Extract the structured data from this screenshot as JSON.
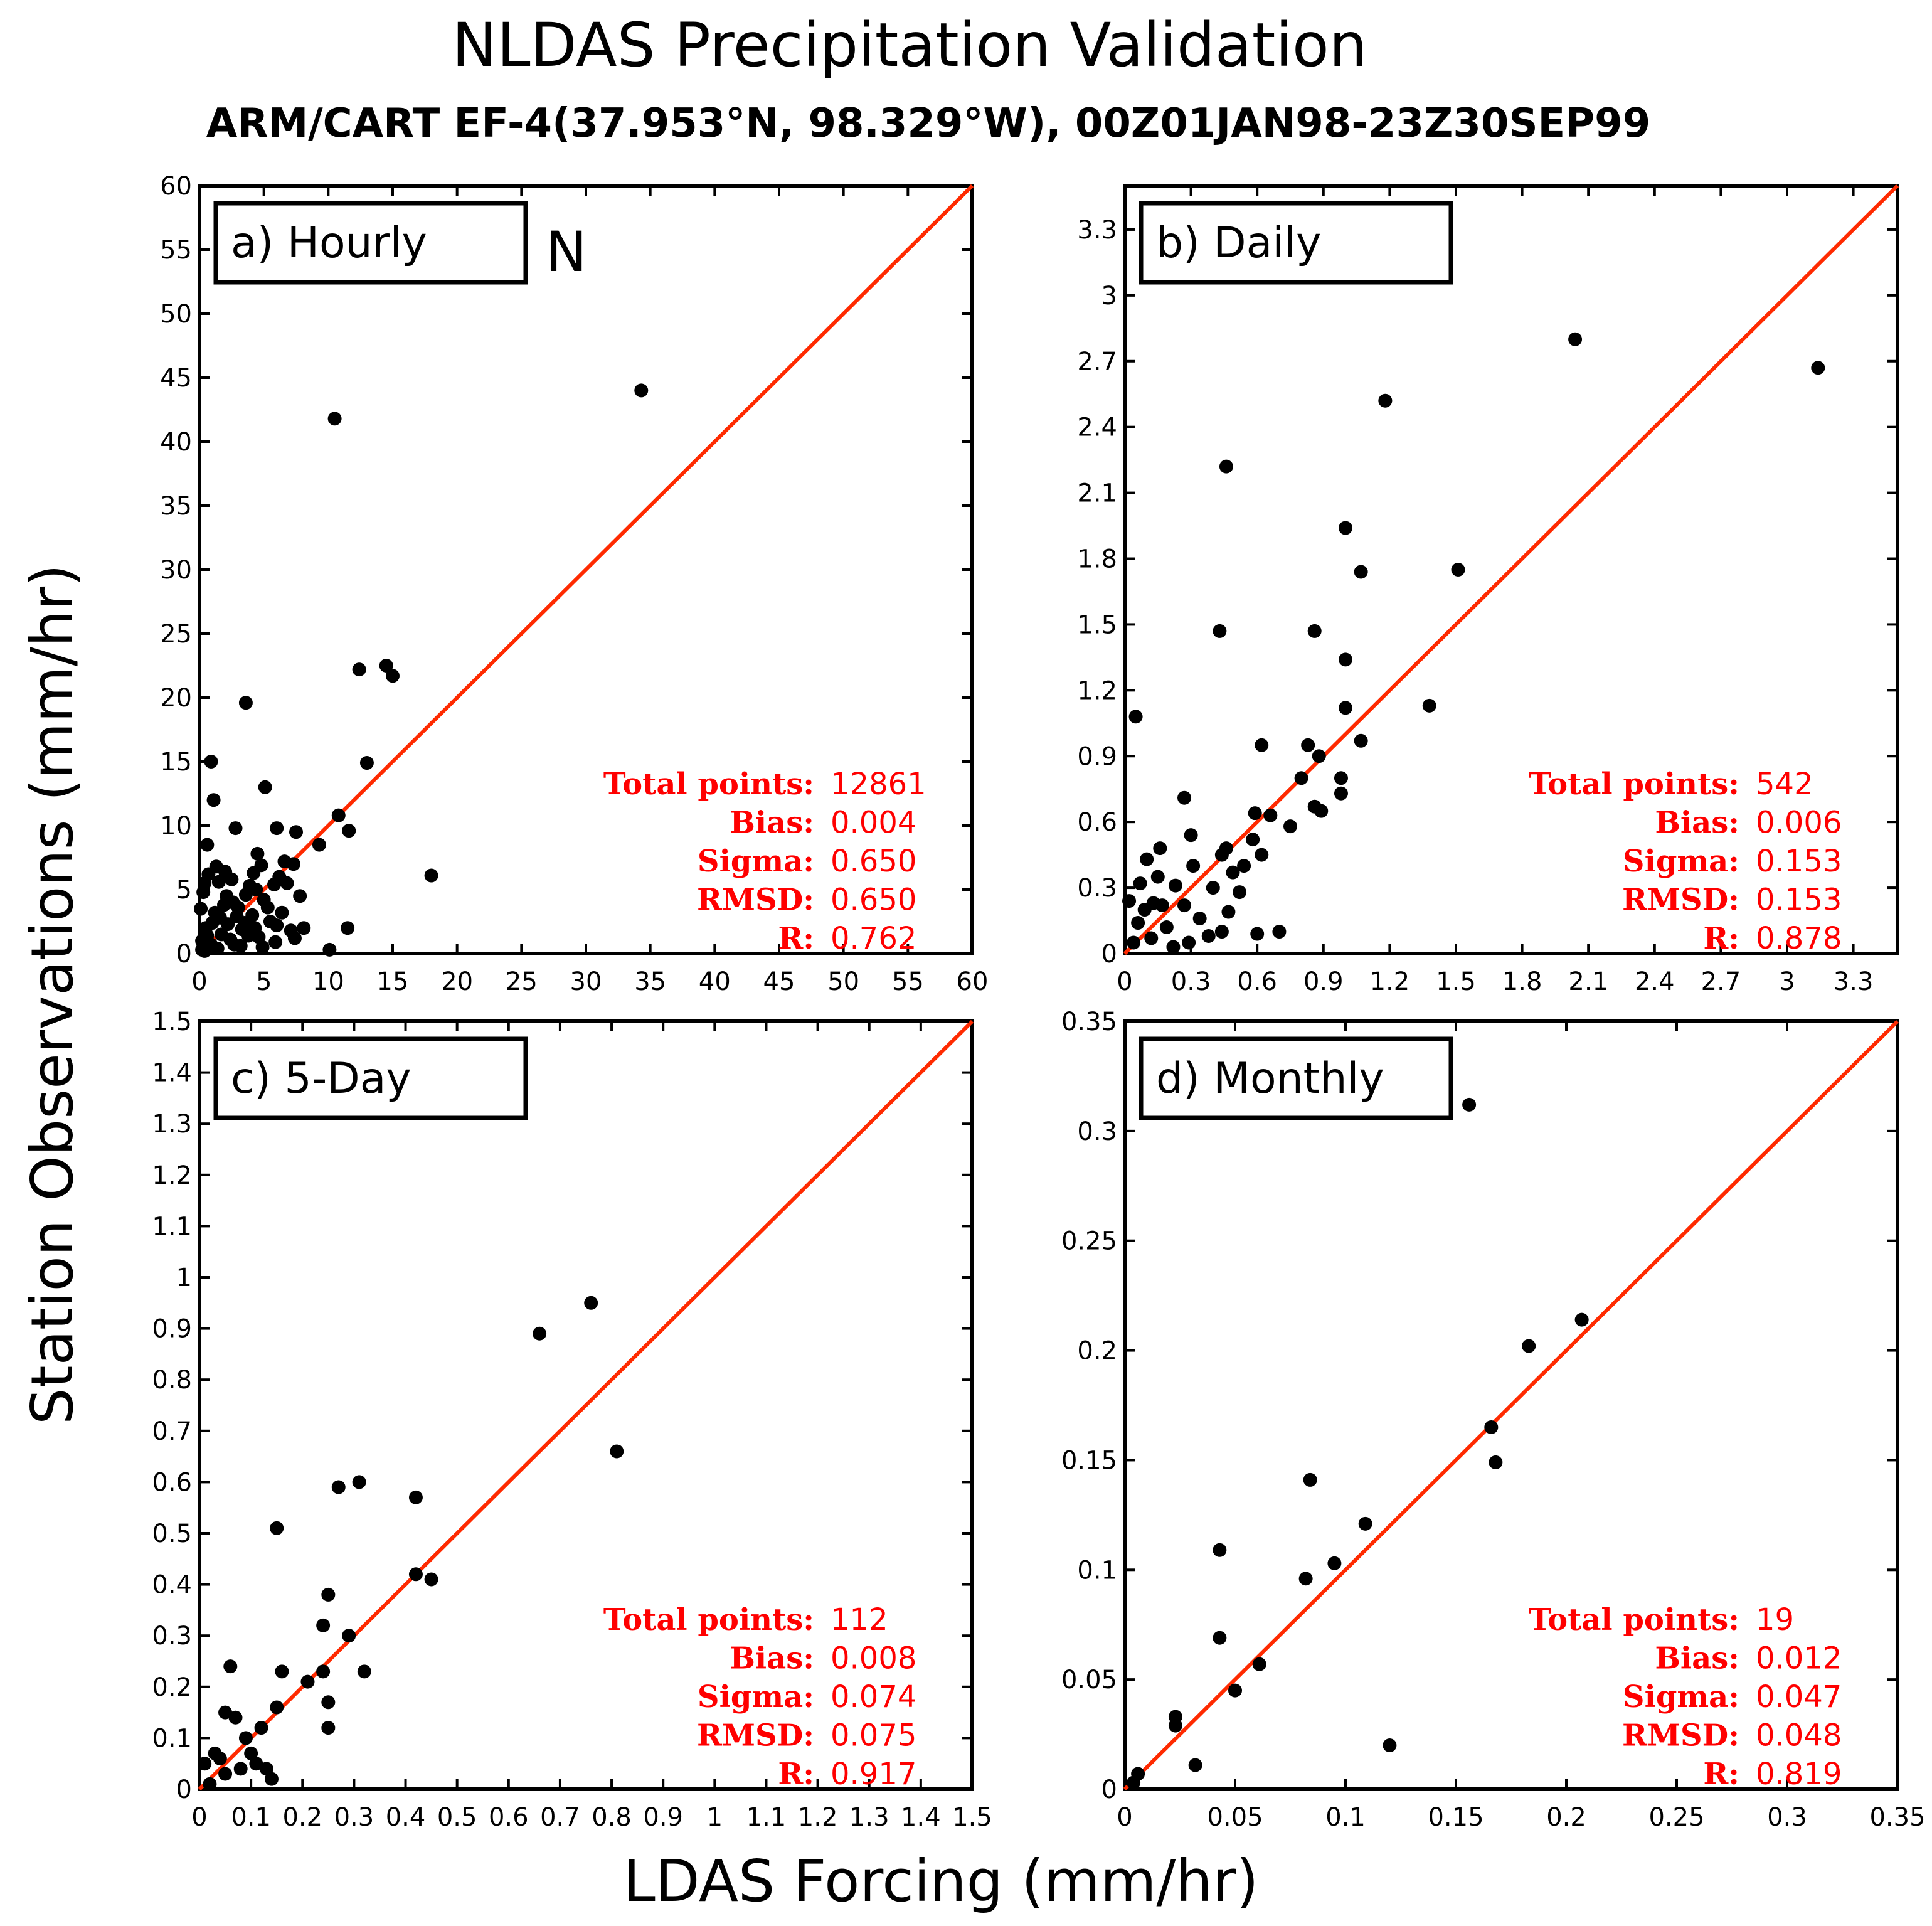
{
  "figure": {
    "title": "NLDAS Precipitation Validation",
    "subtitle": "ARM/CART EF-4(37.953°N, 98.329°W), 00Z01JAN98-23Z30SEP99",
    "xlabel": "LDAS Forcing (mm/hr)",
    "ylabel": "Station Observations (mm/hr)",
    "annotation": "N"
  },
  "colors": {
    "one_to_one_line": "#ff2a00",
    "stats_text": "#ff0000",
    "points": "#000000"
  },
  "chart_data": [
    {
      "type": "scatter",
      "title": "a) Hourly",
      "xlim": [
        0,
        60
      ],
      "ylim": [
        0,
        60
      ],
      "xticks": [
        0,
        5,
        10,
        15,
        20,
        25,
        30,
        35,
        40,
        45,
        50,
        55,
        60
      ],
      "yticks": [
        0,
        5,
        10,
        15,
        20,
        25,
        30,
        35,
        40,
        45,
        50,
        55,
        60
      ],
      "reference_line": "1:1",
      "stats": [
        {
          "label": "Total points:",
          "value": "12861"
        },
        {
          "label": "Bias:",
          "value": "0.004"
        },
        {
          "label": "Sigma:",
          "value": "0.650"
        },
        {
          "label": "RMSD:",
          "value": "0.650"
        },
        {
          "label": "R:",
          "value": "0.762"
        }
      ],
      "points": [
        [
          34.3,
          44.0
        ],
        [
          10.5,
          41.8
        ],
        [
          3.6,
          19.6
        ],
        [
          12.4,
          22.2
        ],
        [
          14.5,
          22.5
        ],
        [
          15.0,
          21.7
        ],
        [
          13.0,
          14.9
        ],
        [
          0.9,
          15.0
        ],
        [
          1.1,
          12.0
        ],
        [
          5.1,
          13.0
        ],
        [
          10.8,
          10.8
        ],
        [
          11.6,
          9.6
        ],
        [
          11.5,
          2.0
        ],
        [
          18.0,
          6.1
        ],
        [
          9.3,
          8.5
        ],
        [
          7.5,
          9.5
        ],
        [
          6.0,
          9.8
        ],
        [
          2.8,
          9.8
        ],
        [
          0.6,
          8.5
        ],
        [
          4.2,
          6.3
        ],
        [
          4.5,
          7.8
        ],
        [
          6.6,
          7.2
        ],
        [
          7.3,
          7.0
        ],
        [
          7.8,
          4.5
        ],
        [
          8.1,
          2.0
        ],
        [
          7.1,
          1.8
        ],
        [
          6.4,
          3.2
        ],
        [
          5.5,
          2.5
        ],
        [
          4.6,
          1.3
        ],
        [
          3.2,
          0.6
        ],
        [
          2.1,
          4.5
        ],
        [
          1.2,
          3.2
        ],
        [
          0.5,
          2.0
        ],
        [
          0.3,
          4.8
        ],
        [
          1.5,
          5.6
        ],
        [
          2.5,
          5.8
        ],
        [
          3.6,
          4.6
        ],
        [
          2.9,
          2.9
        ],
        [
          1.7,
          1.5
        ],
        [
          0.9,
          0.7
        ],
        [
          0.2,
          1.0
        ],
        [
          0.4,
          0.2
        ],
        [
          1.0,
          2.4
        ],
        [
          2.4,
          1.1
        ],
        [
          3.3,
          1.9
        ],
        [
          4.1,
          3.0
        ],
        [
          5.0,
          4.2
        ],
        [
          5.8,
          5.4
        ],
        [
          6.2,
          6.0
        ],
        [
          0.1,
          3.5
        ],
        [
          0.7,
          6.2
        ],
        [
          1.9,
          3.8
        ],
        [
          3.9,
          5.3
        ],
        [
          4.9,
          0.5
        ],
        [
          5.9,
          0.9
        ],
        [
          6.8,
          5.5
        ],
        [
          10.1,
          0.3
        ],
        [
          0.2,
          0.3
        ],
        [
          0.6,
          1.4
        ],
        [
          1.4,
          0.4
        ],
        [
          2.2,
          2.3
        ],
        [
          2.7,
          0.7
        ],
        [
          3.5,
          2.4
        ],
        [
          4.4,
          5.0
        ],
        [
          5.3,
          3.6
        ],
        [
          6.0,
          2.2
        ],
        [
          7.4,
          1.2
        ],
        [
          1.3,
          6.8
        ],
        [
          2.0,
          6.4
        ],
        [
          4.8,
          6.9
        ],
        [
          0.4,
          5.5
        ],
        [
          3.0,
          3.6
        ],
        [
          3.8,
          1.4
        ],
        [
          1.6,
          2.8
        ],
        [
          2.6,
          4.0
        ],
        [
          4.3,
          2.0
        ]
      ]
    },
    {
      "type": "scatter",
      "title": "b) Daily",
      "xlim": [
        0,
        3.5
      ],
      "ylim": [
        0,
        3.5
      ],
      "xticks": [
        0,
        0.3,
        0.6,
        0.9,
        1.2,
        1.5,
        1.8,
        2.1,
        2.4,
        2.7,
        3,
        3.3
      ],
      "yticks": [
        0,
        0.3,
        0.6,
        0.9,
        1.2,
        1.5,
        1.8,
        2.1,
        2.4,
        2.7,
        3,
        3.3
      ],
      "reference_line": "1:1",
      "stats": [
        {
          "label": "Total points:",
          "value": "542"
        },
        {
          "label": "Bias:",
          "value": "0.006"
        },
        {
          "label": "Sigma:",
          "value": "0.153"
        },
        {
          "label": "RMSD:",
          "value": "0.153"
        },
        {
          "label": "R:",
          "value": "0.878"
        }
      ],
      "points": [
        [
          2.04,
          2.8
        ],
        [
          3.14,
          2.67
        ],
        [
          1.18,
          2.52
        ],
        [
          0.46,
          2.22
        ],
        [
          1.0,
          1.94
        ],
        [
          1.07,
          1.74
        ],
        [
          1.51,
          1.75
        ],
        [
          0.43,
          1.47
        ],
        [
          0.86,
          1.47
        ],
        [
          1.0,
          1.34
        ],
        [
          1.38,
          1.13
        ],
        [
          0.05,
          1.08
        ],
        [
          1.0,
          1.12
        ],
        [
          0.62,
          0.95
        ],
        [
          0.83,
          0.95
        ],
        [
          0.88,
          0.9
        ],
        [
          1.07,
          0.97
        ],
        [
          0.8,
          0.8
        ],
        [
          0.98,
          0.8
        ],
        [
          0.98,
          0.73
        ],
        [
          0.89,
          0.65
        ],
        [
          0.86,
          0.67
        ],
        [
          0.75,
          0.58
        ],
        [
          0.66,
          0.63
        ],
        [
          0.59,
          0.64
        ],
        [
          0.58,
          0.52
        ],
        [
          0.62,
          0.45
        ],
        [
          0.54,
          0.4
        ],
        [
          0.49,
          0.37
        ],
        [
          0.44,
          0.45
        ],
        [
          0.46,
          0.48
        ],
        [
          0.4,
          0.3
        ],
        [
          0.3,
          0.54
        ],
        [
          0.27,
          0.71
        ],
        [
          0.16,
          0.48
        ],
        [
          0.1,
          0.43
        ],
        [
          0.23,
          0.31
        ],
        [
          0.17,
          0.22
        ],
        [
          0.07,
          0.32
        ],
        [
          0.02,
          0.24
        ],
        [
          0.06,
          0.14
        ],
        [
          0.12,
          0.07
        ],
        [
          0.19,
          0.12
        ],
        [
          0.27,
          0.22
        ],
        [
          0.34,
          0.16
        ],
        [
          0.44,
          0.1
        ],
        [
          0.47,
          0.19
        ],
        [
          0.6,
          0.09
        ],
        [
          0.7,
          0.1
        ],
        [
          0.38,
          0.08
        ],
        [
          0.29,
          0.05
        ],
        [
          0.13,
          0.23
        ],
        [
          0.22,
          0.03
        ],
        [
          0.04,
          0.05
        ],
        [
          0.09,
          0.2
        ],
        [
          0.15,
          0.35
        ],
        [
          0.31,
          0.4
        ],
        [
          0.52,
          0.28
        ]
      ]
    },
    {
      "type": "scatter",
      "title": "c) 5-Day",
      "xlim": [
        0,
        1.5
      ],
      "ylim": [
        0,
        1.5
      ],
      "xticks": [
        0,
        0.1,
        0.2,
        0.3,
        0.4,
        0.5,
        0.6,
        0.7,
        0.8,
        0.9,
        1,
        1.1,
        1.2,
        1.3,
        1.4,
        1.5
      ],
      "yticks": [
        0,
        0.1,
        0.2,
        0.3,
        0.4,
        0.5,
        0.6,
        0.7,
        0.8,
        0.9,
        1,
        1.1,
        1.2,
        1.3,
        1.4,
        1.5
      ],
      "reference_line": "1:1",
      "stats": [
        {
          "label": "Total points:",
          "value": "112"
        },
        {
          "label": "Bias:",
          "value": "0.008"
        },
        {
          "label": "Sigma:",
          "value": "0.074"
        },
        {
          "label": "RMSD:",
          "value": "0.075"
        },
        {
          "label": "R:",
          "value": "0.917"
        }
      ],
      "points": [
        [
          0.76,
          0.95
        ],
        [
          0.66,
          0.89
        ],
        [
          0.81,
          0.66
        ],
        [
          0.27,
          0.59
        ],
        [
          0.31,
          0.6
        ],
        [
          0.42,
          0.57
        ],
        [
          0.15,
          0.51
        ],
        [
          0.45,
          0.41
        ],
        [
          0.42,
          0.42
        ],
        [
          0.25,
          0.38
        ],
        [
          0.24,
          0.32
        ],
        [
          0.29,
          0.3
        ],
        [
          0.32,
          0.23
        ],
        [
          0.24,
          0.23
        ],
        [
          0.21,
          0.21
        ],
        [
          0.16,
          0.23
        ],
        [
          0.06,
          0.24
        ],
        [
          0.25,
          0.17
        ],
        [
          0.15,
          0.16
        ],
        [
          0.25,
          0.12
        ],
        [
          0.12,
          0.12
        ],
        [
          0.07,
          0.14
        ],
        [
          0.05,
          0.15
        ],
        [
          0.1,
          0.07
        ],
        [
          0.08,
          0.04
        ],
        [
          0.13,
          0.04
        ],
        [
          0.14,
          0.02
        ],
        [
          0.03,
          0.07
        ],
        [
          0.01,
          0.05
        ],
        [
          0.05,
          0.03
        ],
        [
          0.02,
          0.01
        ],
        [
          0.04,
          0.06
        ],
        [
          0.09,
          0.1
        ],
        [
          0.11,
          0.05
        ]
      ]
    },
    {
      "type": "scatter",
      "title": "d) Monthly",
      "xlim": [
        0,
        0.35
      ],
      "ylim": [
        0,
        0.35
      ],
      "xticks": [
        0,
        0.05,
        0.1,
        0.15,
        0.2,
        0.25,
        0.3,
        0.35
      ],
      "yticks": [
        0,
        0.05,
        0.1,
        0.15,
        0.2,
        0.25,
        0.3,
        0.35
      ],
      "reference_line": "1:1",
      "stats": [
        {
          "label": "Total points:",
          "value": "19"
        },
        {
          "label": "Bias:",
          "value": "0.012"
        },
        {
          "label": "Sigma:",
          "value": "0.047"
        },
        {
          "label": "RMSD:",
          "value": "0.048"
        },
        {
          "label": "R:",
          "value": "0.819"
        }
      ],
      "points": [
        [
          0.156,
          0.312
        ],
        [
          0.207,
          0.214
        ],
        [
          0.183,
          0.202
        ],
        [
          0.166,
          0.165
        ],
        [
          0.168,
          0.149
        ],
        [
          0.084,
          0.141
        ],
        [
          0.109,
          0.121
        ],
        [
          0.043,
          0.109
        ],
        [
          0.095,
          0.103
        ],
        [
          0.082,
          0.096
        ],
        [
          0.043,
          0.069
        ],
        [
          0.061,
          0.057
        ],
        [
          0.05,
          0.045
        ],
        [
          0.023,
          0.033
        ],
        [
          0.023,
          0.029
        ],
        [
          0.12,
          0.02
        ],
        [
          0.032,
          0.011
        ],
        [
          0.006,
          0.007
        ],
        [
          0.004,
          0.003
        ]
      ]
    }
  ]
}
